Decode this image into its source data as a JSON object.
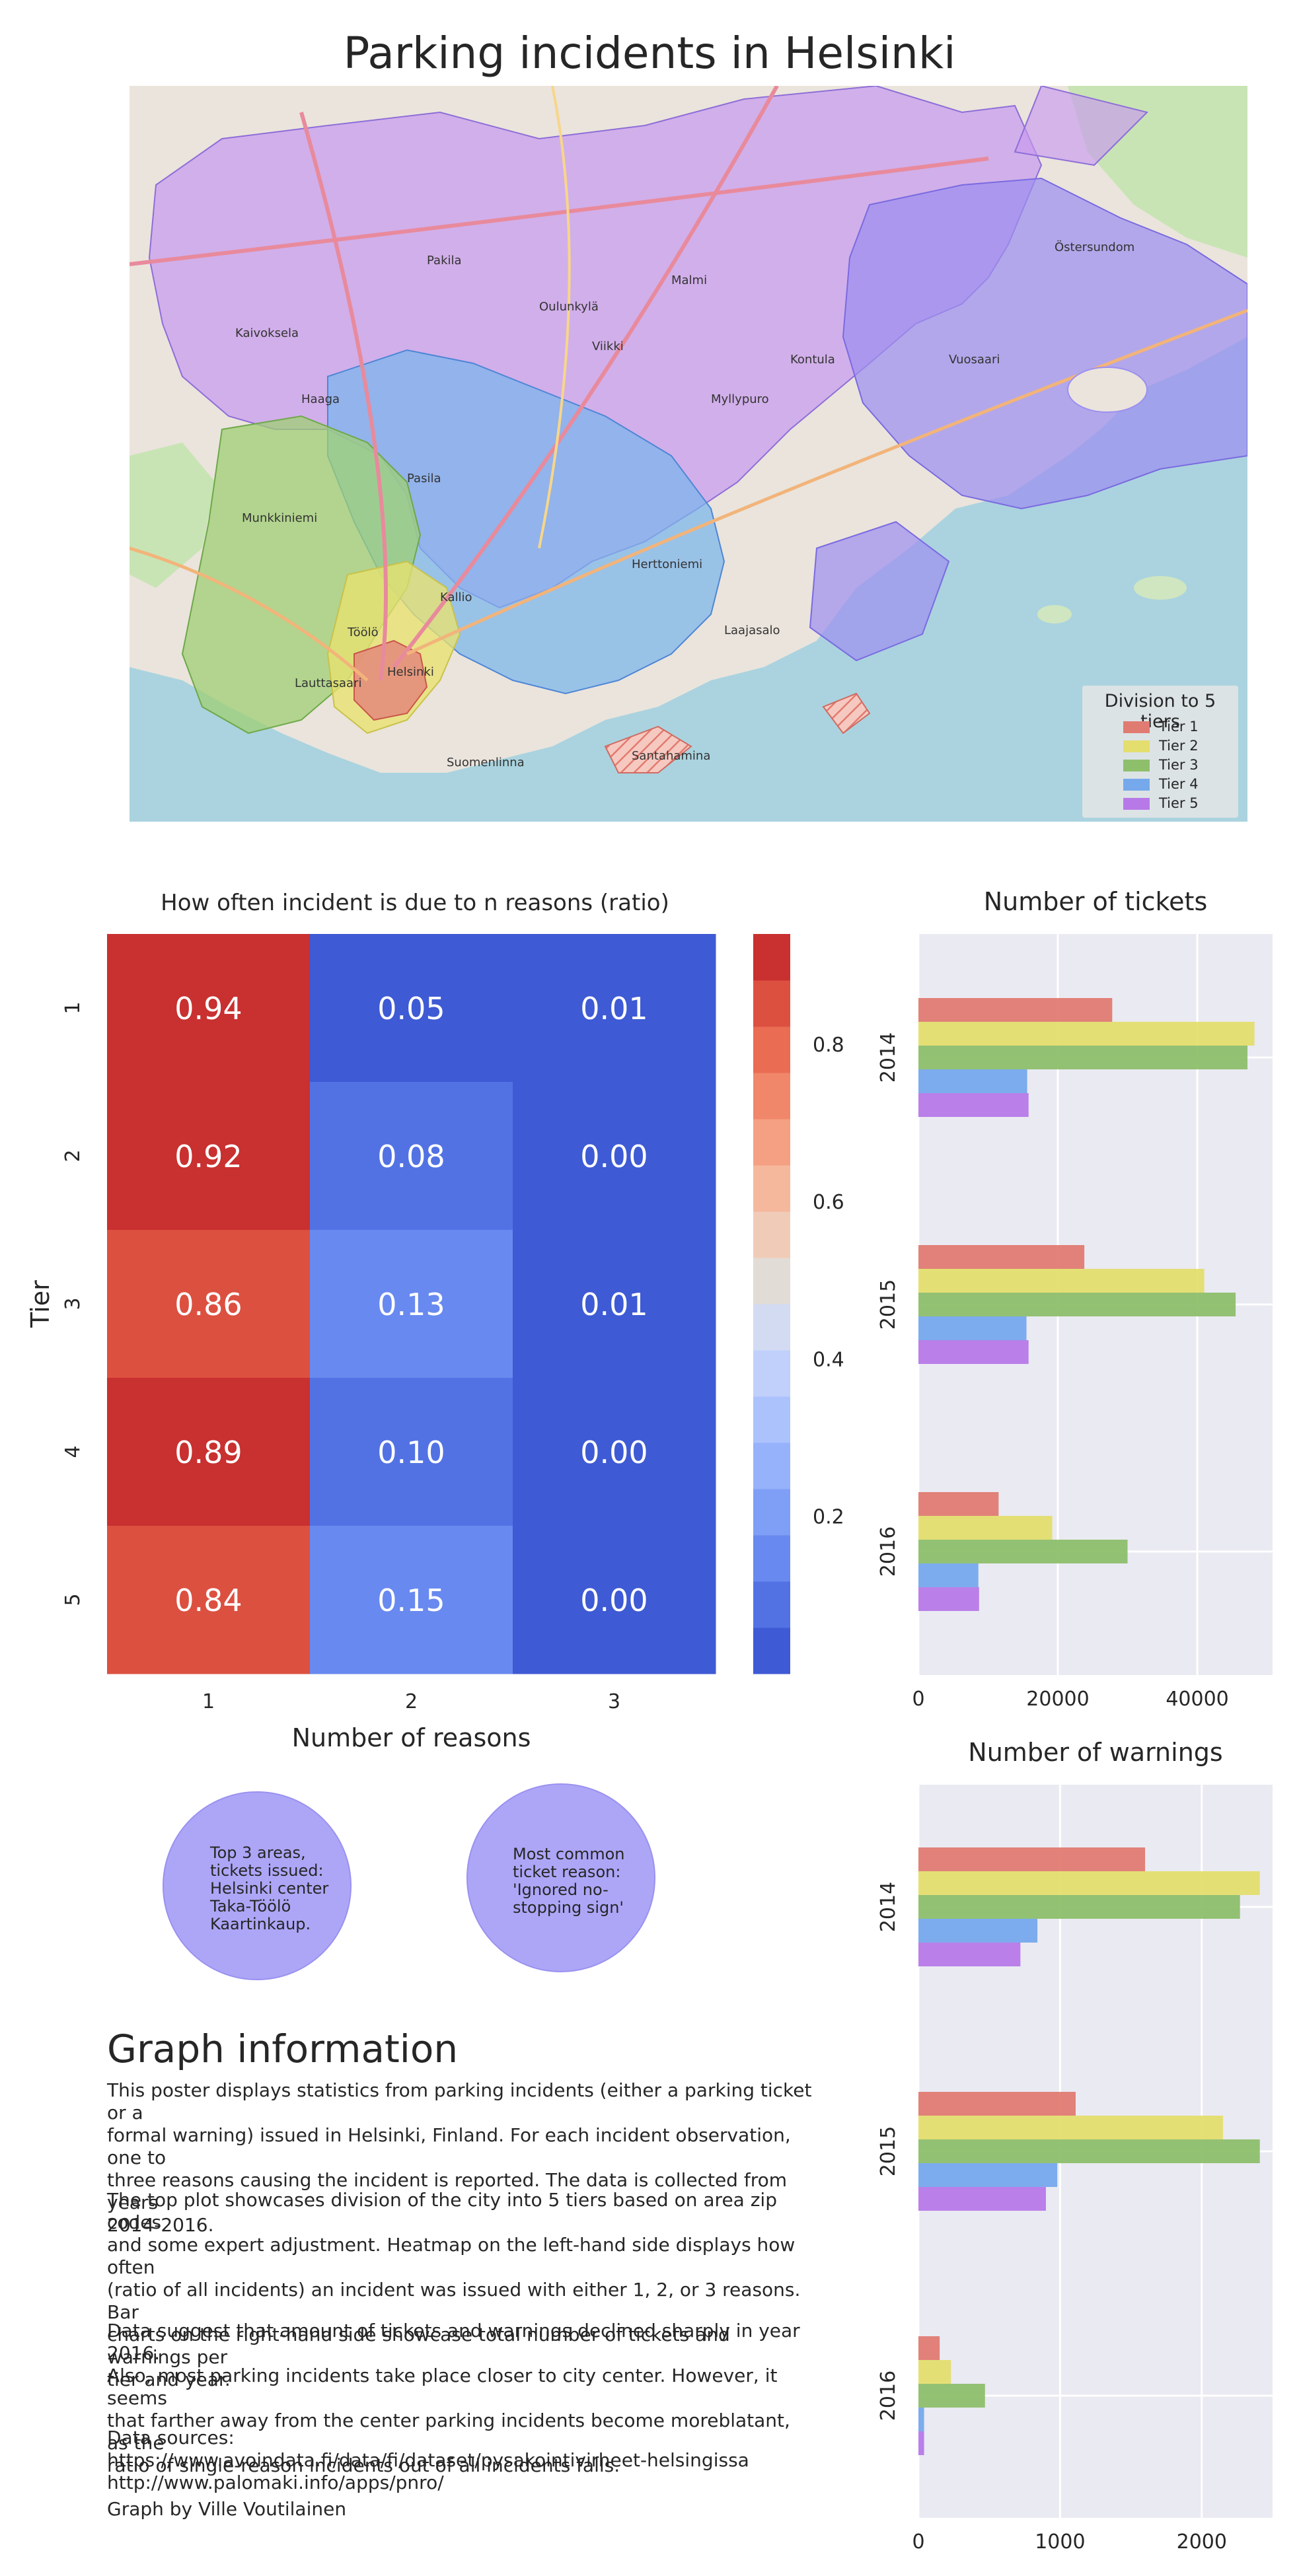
{
  "title": "Parking incidents in Helsinki",
  "map": {
    "legend_title": "Division to 5 tiers",
    "tiers": [
      {
        "label": "Tier 1",
        "color": "#e07b72"
      },
      {
        "label": "Tier 2",
        "color": "#e4de6e"
      },
      {
        "label": "Tier 3",
        "color": "#8ebf6b"
      },
      {
        "label": "Tier 4",
        "color": "#76a9ec"
      },
      {
        "label": "Tier 5",
        "color": "#b779e8"
      }
    ],
    "place_labels": [
      "Helsinki",
      "Töölö",
      "Kallio",
      "Pasila",
      "Vuosaari",
      "Malmi",
      "Myllypuro",
      "Kontula",
      "Herttoniemi",
      "Laajasalo",
      "Pakila",
      "Haaga",
      "Munkkiniemi",
      "Lauttasaari",
      "Östersundom",
      "Santahamina",
      "Suomenlinna",
      "Oulunkylä",
      "Viikki",
      "Kaivoksela"
    ]
  },
  "chart_data": [
    {
      "type": "heatmap",
      "title": "How often incident is due to n reasons (ratio)",
      "xlabel": "Number of reasons",
      "ylabel": "Tier",
      "x_categories": [
        "1",
        "2",
        "3"
      ],
      "y_categories": [
        "1",
        "2",
        "3",
        "4",
        "5"
      ],
      "values": [
        [
          0.94,
          0.05,
          0.01
        ],
        [
          0.92,
          0.08,
          0.0
        ],
        [
          0.86,
          0.13,
          0.01
        ],
        [
          0.89,
          0.1,
          0.0
        ],
        [
          0.84,
          0.15,
          0.0
        ]
      ],
      "value_labels": [
        [
          "0.94",
          "0.05",
          "0.01"
        ],
        [
          "0.92",
          "0.08",
          "0.00"
        ],
        [
          "0.86",
          "0.13",
          "0.01"
        ],
        [
          "0.89",
          "0.10",
          "0.00"
        ],
        [
          "0.84",
          "0.15",
          "0.00"
        ]
      ],
      "colorbar_ticks": [
        "0.2",
        "0.4",
        "0.6",
        "0.8"
      ],
      "colorbar_range": [
        0.0,
        0.94
      ],
      "colormap": [
        "#3e5ad4",
        "#5272e4",
        "#6889ef",
        "#7f9ff6",
        "#96b2fb",
        "#abc2fd",
        "#c0d0fb",
        "#d3dbf3",
        "#e2dcd6",
        "#f0ccb8",
        "#f5b89d",
        "#f5a083",
        "#f1876a",
        "#e96c53",
        "#dc5040",
        "#c93030"
      ]
    },
    {
      "type": "bar",
      "orientation": "horizontal",
      "title": "Number of tickets",
      "categories": [
        "2014",
        "2015",
        "2016"
      ],
      "xticks": [
        "0",
        "20000",
        "40000"
      ],
      "xlim": [
        0,
        50800
      ],
      "series": [
        {
          "name": "Tier 1",
          "color": "#e07b72",
          "values": [
            27800,
            23800,
            11500
          ]
        },
        {
          "name": "Tier 2",
          "color": "#e4de6e",
          "values": [
            48200,
            41000,
            19200
          ]
        },
        {
          "name": "Tier 3",
          "color": "#8ebf6b",
          "values": [
            47200,
            45500,
            30000
          ]
        },
        {
          "name": "Tier 4",
          "color": "#76a9ec",
          "values": [
            15600,
            15500,
            8600
          ]
        },
        {
          "name": "Tier 5",
          "color": "#b779e8",
          "values": [
            15800,
            15800,
            8700
          ]
        }
      ]
    },
    {
      "type": "bar",
      "orientation": "horizontal",
      "title": "Number of warnings",
      "categories": [
        "2014",
        "2015",
        "2016"
      ],
      "xticks": [
        "0",
        "1000",
        "2000"
      ],
      "xlim": [
        0,
        2500
      ],
      "series": [
        {
          "name": "Tier 1",
          "color": "#e07b72",
          "values": [
            1600,
            1110,
            150
          ]
        },
        {
          "name": "Tier 2",
          "color": "#e4de6e",
          "values": [
            2410,
            2150,
            230
          ]
        },
        {
          "name": "Tier 3",
          "color": "#8ebf6b",
          "values": [
            2270,
            2410,
            470
          ]
        },
        {
          "name": "Tier 4",
          "color": "#76a9ec",
          "values": [
            840,
            980,
            40
          ]
        },
        {
          "name": "Tier 5",
          "color": "#b779e8",
          "values": [
            720,
            900,
            40
          ]
        }
      ]
    }
  ],
  "bubbles": [
    {
      "text": "Top 3 areas,\ntickets issued:\nHelsinki center\nTaka-Töölö\nKaartinkaup."
    },
    {
      "text": "Most common\nticket reason:\n'Ignored no-\nstopping sign'"
    }
  ],
  "info": {
    "title": "Graph information",
    "p1": "This poster displays statistics from parking incidents (either a parking ticket or a\nformal warning) issued in Helsinki, Finland. For each incident observation, one to\nthree reasons causing the incident is reported. The data is collected from years\n2014-2016.",
    "p2": "The top plot showcases division of the city into 5 tiers based on area zip codes\nand some expert adjustment. Heatmap on the left-hand side displays how often\n(ratio of all incidents) an incident was issued with either 1, 2, or 3 reasons. Bar\ncharts on the right-hand side showcase total number of tickets and warnings per\ntier and year.",
    "p3": "Data suggest that amount of tickets and warnings declined sharply in year 2016.\nAlso, most parking incidents take place closer to city center. However, it seems\nthat farther away from the center parking incidents become moreblatant, as the\nratio of single-reason incidents out of all incidents falls.",
    "p4_label": "Data sources:",
    "p4_src1": "https://www.avoindata.fi/data/fi/dataset/pysakointivirheet-helsingissa",
    "p4_src2": "http://www.palomaki.info/apps/pnro/",
    "credit": "Graph by Ville Voutilainen"
  }
}
